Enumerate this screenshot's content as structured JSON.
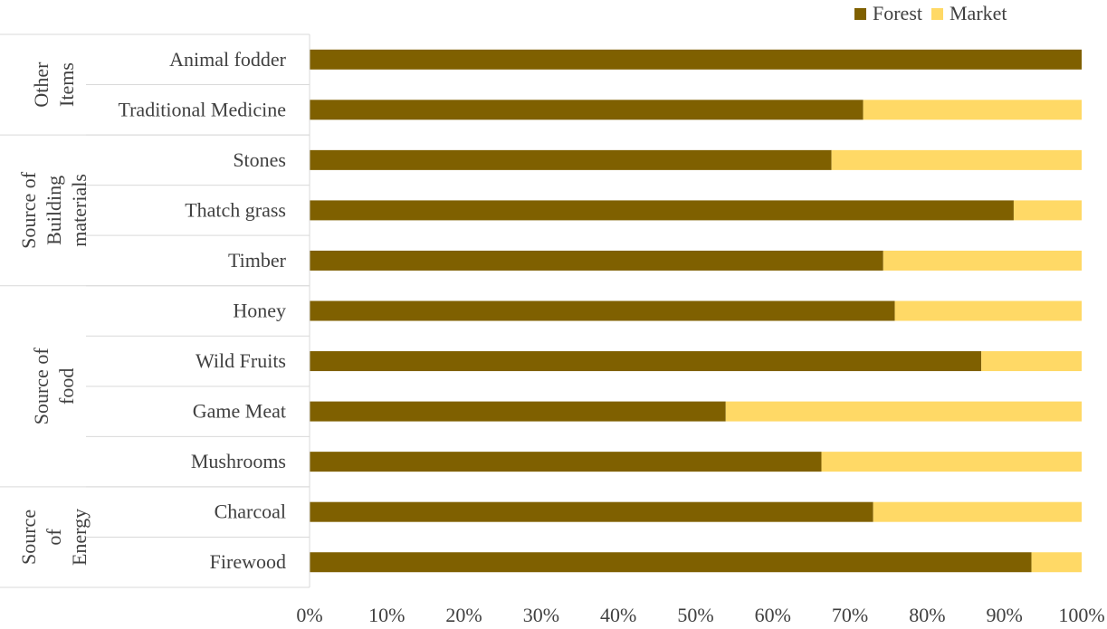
{
  "chart_data": {
    "type": "bar",
    "orientation": "horizontal",
    "stacked": true,
    "categories": [
      "Firewood",
      "Charcoal",
      "Mushrooms",
      "Game Meat",
      "Wild Fruits",
      "Honey",
      "Timber",
      "Thatch grass",
      "Stones",
      "Traditional Medicine",
      "Animal fodder"
    ],
    "groups": [
      {
        "label": "Source of Energy",
        "categories": [
          "Firewood",
          "Charcoal"
        ]
      },
      {
        "label": "Source of food",
        "categories": [
          "Mushrooms",
          "Game Meat",
          "Wild Fruits",
          "Honey"
        ]
      },
      {
        "label": "Source of Building materials",
        "categories": [
          "Timber",
          "Thatch grass",
          "Stones"
        ]
      },
      {
        "label": "Other Items",
        "categories": [
          "Traditional Medicine",
          "Animal fodder"
        ]
      }
    ],
    "series": [
      {
        "name": "Forest",
        "color": "#7f6000",
        "values": [
          93.5,
          73.0,
          66.3,
          53.9,
          87.0,
          75.8,
          74.3,
          91.2,
          67.6,
          71.7,
          100.0
        ]
      },
      {
        "name": "Market",
        "color": "#ffd966",
        "values": [
          6.5,
          27.0,
          33.7,
          46.1,
          13.0,
          24.2,
          25.7,
          8.8,
          32.4,
          28.3,
          0.0
        ]
      }
    ],
    "xlim": [
      0,
      100
    ],
    "xticks": [
      "0%",
      "10%",
      "20%",
      "30%",
      "40%",
      "50%",
      "60%",
      "70%",
      "80%",
      "90%",
      "100%"
    ],
    "grid": false,
    "legend_position": "top-right",
    "title": "",
    "xlabel": "",
    "ylabel": ""
  }
}
